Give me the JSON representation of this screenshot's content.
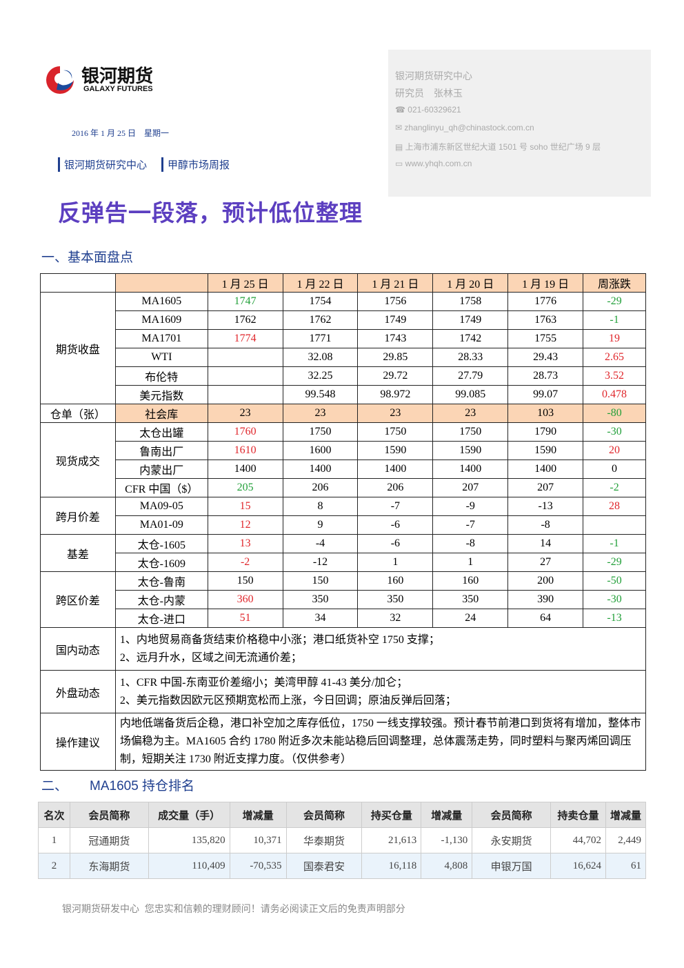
{
  "header": {
    "logo_cn": "银河期货",
    "logo_en": "GALAXY FUTURES",
    "date": "2016 年 1 月 25 日　星期一",
    "tags": [
      "银河期货研究中心",
      "甲醇市场周报"
    ]
  },
  "contact": {
    "org": "银河期货研究中心",
    "analyst": "研究员　张林玉",
    "phone": "021-60329621",
    "email": "zhanglinyu_qh@chinastock.com.cn",
    "address": "上海市浦东新区世纪大道 1501 号 soho 世纪广场 9 层",
    "web": "www.yhqh.com.cn"
  },
  "title": "反弹告一段落，预计低位整理",
  "section1": "一、基本面盘点",
  "table1": {
    "header": [
      "1 月 25 日",
      "1 月 22 日",
      "1 月 21 日",
      "1 月 20 日",
      "1 月 19 日",
      "周涨跌"
    ],
    "groups": [
      {
        "label": "期货收盘",
        "rows": [
          [
            "MA1605",
            "1747",
            "1754",
            "1756",
            "1758",
            "1776",
            "-29"
          ],
          [
            "MA1609",
            "1762",
            "1762",
            "1749",
            "1749",
            "1763",
            "-1"
          ],
          [
            "MA1701",
            "1774",
            "1771",
            "1743",
            "1742",
            "1755",
            "19"
          ],
          [
            "WTI",
            null,
            "32.08",
            "29.85",
            "28.33",
            "29.43",
            "2.65"
          ],
          [
            "布伦特",
            null,
            "32.25",
            "29.72",
            "27.79",
            "28.73",
            "3.52"
          ],
          [
            "美元指数",
            null,
            "99.548",
            "98.972",
            "99.085",
            "99.07",
            "0.478"
          ]
        ]
      },
      {
        "label": "仓单（张）",
        "rows": [
          [
            "社会库",
            "23",
            "23",
            "23",
            "23",
            "103",
            "-80"
          ]
        ]
      },
      {
        "label": "现货成交",
        "rows": [
          [
            "太仓出罐",
            "1760",
            "1750",
            "1750",
            "1750",
            "1790",
            "-30"
          ],
          [
            "鲁南出厂",
            "1610",
            "1600",
            "1590",
            "1590",
            "1590",
            "20"
          ],
          [
            "内蒙出厂",
            "1400",
            "1400",
            "1400",
            "1400",
            "1400",
            "0"
          ],
          [
            "CFR 中国（$）",
            "205",
            "206",
            "206",
            "207",
            "207",
            "-2"
          ]
        ]
      },
      {
        "label": "跨月价差",
        "rows": [
          [
            "MA09-05",
            "15",
            "8",
            "-7",
            "-9",
            "-13",
            "28"
          ],
          [
            "MA01-09",
            "12",
            "9",
            "-6",
            "-7",
            "-8",
            null
          ]
        ]
      },
      {
        "label": "基差",
        "rows": [
          [
            "太仓-1605",
            "13",
            "-4",
            "-6",
            "-8",
            "14",
            "-1"
          ],
          [
            "太仓-1609",
            "-2",
            "-12",
            "1",
            "1",
            "27",
            "-29"
          ]
        ]
      },
      {
        "label": "跨区价差",
        "rows": [
          [
            "太仓-鲁南",
            "150",
            "150",
            "160",
            "160",
            "200",
            "-50"
          ],
          [
            "太仓-内蒙",
            "360",
            "350",
            "350",
            "350",
            "390",
            "-30"
          ],
          [
            "太仓-进口",
            "51",
            "34",
            "32",
            "24",
            "64",
            "-13"
          ]
        ]
      }
    ],
    "notes": [
      {
        "label": "国内动态",
        "lines": [
          "1、内地贸易商备货结束价格稳中小涨；港口纸货补空 1750 支撑；",
          "2、远月升水，区域之间无流通价差；"
        ]
      },
      {
        "label": "外盘动态",
        "lines": [
          "1、CFR 中国-东南亚价差缩小；美湾甲醇 41-43 美分/加仑；",
          "2、美元指数因欧元区预期宽松而上涨，今日回调；原油反弹后回落；"
        ]
      },
      {
        "label": "操作建议",
        "lines": [
          "内地低端备货后企稳，港口补空加之库存低位，1750 一线支撑较强。预计春节前港口到货将有增加，整体市场偏稳为主。MA1605 合约 1780 附近多次未能站稳后回调整理，总体震荡走势，同时塑料与聚丙烯回调压制，短期关注 1730 附近支撑力度。（仅供参考）"
        ]
      }
    ]
  },
  "section2": {
    "number": "二、",
    "title": "MA1605 持仓排名"
  },
  "table2": {
    "header": [
      "名次",
      "会员简称",
      "成交量（手）",
      "增减量",
      "会员简称",
      "持买仓量",
      "增减量",
      "会员简称",
      "持卖仓量",
      "增减量"
    ],
    "rows": [
      [
        "1",
        "冠通期货",
        "135,820",
        "10,371",
        "华泰期货",
        "21,613",
        "-1,130",
        "永安期货",
        "44,702",
        "2,449"
      ],
      [
        "2",
        "东海期货",
        "110,409",
        "-70,535",
        "国泰君安",
        "16,118",
        "4,808",
        "申银万国",
        "16,624",
        "61"
      ]
    ]
  },
  "footer": "银河期货研发中心  您忠实和信赖的理财顾问！请务必阅读正文后的免责声明部分"
}
